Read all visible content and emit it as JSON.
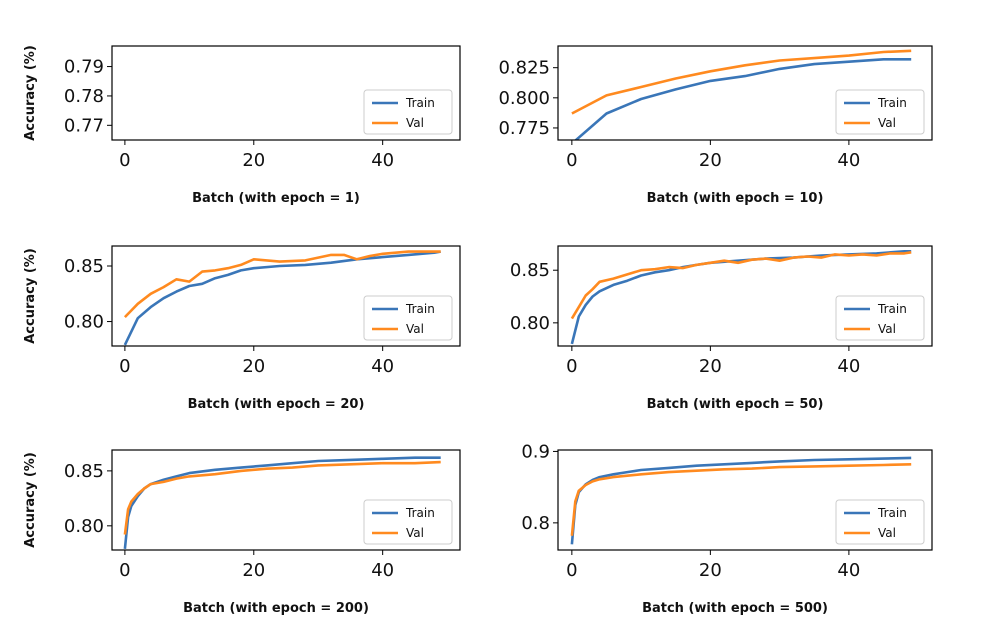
{
  "colors": {
    "train": "#3a76b8",
    "val": "#ff8a1f"
  },
  "chart_data": [
    {
      "type": "line",
      "xlabel": "Batch (with epoch = 1)",
      "ylabel": "Accuracy (%)",
      "xlim": [
        -2,
        52
      ],
      "ylim": [
        0.765,
        0.797
      ],
      "xticks": [
        0,
        20,
        40
      ],
      "yticks": [
        0.77,
        0.78,
        0.79
      ],
      "ytick_labels": [
        "0.77",
        "0.78",
        "0.79"
      ],
      "legend": "lower right",
      "series": [
        {
          "name": "Train",
          "x": [],
          "y": []
        },
        {
          "name": "Val",
          "x": [],
          "y": []
        }
      ]
    },
    {
      "type": "line",
      "xlabel": "Batch (with epoch = 10)",
      "ylabel": "Accuracy (%)",
      "xlim": [
        -2,
        52
      ],
      "ylim": [
        0.765,
        0.843
      ],
      "xticks": [
        0,
        20,
        40
      ],
      "yticks": [
        0.775,
        0.8,
        0.825
      ],
      "ytick_labels": [
        "0.775",
        "0.800",
        "0.825"
      ],
      "legend": "lower right",
      "series": [
        {
          "name": "Train",
          "x": [
            0,
            5,
            10,
            15,
            20,
            25,
            30,
            35,
            40,
            45,
            49
          ],
          "y": [
            0.762,
            0.787,
            0.799,
            0.807,
            0.814,
            0.818,
            0.824,
            0.828,
            0.83,
            0.832,
            0.832
          ]
        },
        {
          "name": "Val",
          "x": [
            0,
            5,
            10,
            15,
            20,
            25,
            30,
            35,
            40,
            45,
            49
          ],
          "y": [
            0.787,
            0.802,
            0.809,
            0.816,
            0.822,
            0.827,
            0.831,
            0.833,
            0.835,
            0.838,
            0.839
          ]
        }
      ]
    },
    {
      "type": "line",
      "xlabel": "Batch (with epoch = 20)",
      "ylabel": "Accuracy (%)",
      "xlim": [
        -2,
        52
      ],
      "ylim": [
        0.778,
        0.868
      ],
      "xticks": [
        0,
        20,
        40
      ],
      "yticks": [
        0.8,
        0.85
      ],
      "ytick_labels": [
        "0.80",
        "0.85"
      ],
      "legend": "lower right",
      "series": [
        {
          "name": "Train",
          "x": [
            0,
            2,
            4,
            6,
            8,
            10,
            12,
            14,
            16,
            18,
            20,
            24,
            28,
            32,
            36,
            40,
            44,
            48,
            49
          ],
          "y": [
            0.779,
            0.803,
            0.813,
            0.821,
            0.827,
            0.832,
            0.834,
            0.839,
            0.842,
            0.846,
            0.848,
            0.85,
            0.851,
            0.853,
            0.856,
            0.858,
            0.86,
            0.862,
            0.863
          ]
        },
        {
          "name": "Val",
          "x": [
            0,
            2,
            4,
            6,
            8,
            10,
            12,
            14,
            16,
            18,
            20,
            24,
            28,
            32,
            34,
            36,
            38,
            40,
            44,
            48,
            49
          ],
          "y": [
            0.804,
            0.816,
            0.825,
            0.831,
            0.838,
            0.836,
            0.845,
            0.846,
            0.848,
            0.851,
            0.856,
            0.854,
            0.855,
            0.86,
            0.86,
            0.856,
            0.859,
            0.861,
            0.863,
            0.863,
            0.863
          ]
        }
      ]
    },
    {
      "type": "line",
      "xlabel": "Batch (with epoch = 50)",
      "ylabel": "Accuracy (%)",
      "xlim": [
        -2,
        52
      ],
      "ylim": [
        0.778,
        0.873
      ],
      "xticks": [
        0,
        20,
        40
      ],
      "yticks": [
        0.8,
        0.85
      ],
      "ytick_labels": [
        "0.80",
        "0.85"
      ],
      "legend": "lower right",
      "series": [
        {
          "name": "Train",
          "x": [
            0,
            1,
            2,
            3,
            4,
            6,
            8,
            10,
            12,
            14,
            16,
            18,
            20,
            24,
            28,
            32,
            36,
            40,
            44,
            48,
            49
          ],
          "y": [
            0.78,
            0.806,
            0.817,
            0.825,
            0.83,
            0.836,
            0.84,
            0.845,
            0.848,
            0.85,
            0.853,
            0.855,
            0.857,
            0.859,
            0.861,
            0.862,
            0.864,
            0.865,
            0.866,
            0.868,
            0.868
          ]
        },
        {
          "name": "Val",
          "x": [
            0,
            1,
            2,
            3,
            4,
            6,
            8,
            10,
            12,
            14,
            16,
            18,
            20,
            22,
            24,
            26,
            28,
            30,
            32,
            34,
            36,
            38,
            40,
            42,
            44,
            46,
            48,
            49
          ],
          "y": [
            0.804,
            0.815,
            0.826,
            0.832,
            0.839,
            0.842,
            0.846,
            0.85,
            0.851,
            0.853,
            0.852,
            0.855,
            0.857,
            0.859,
            0.857,
            0.86,
            0.861,
            0.859,
            0.862,
            0.863,
            0.862,
            0.865,
            0.864,
            0.865,
            0.864,
            0.866,
            0.866,
            0.867
          ]
        }
      ]
    },
    {
      "type": "line",
      "xlabel": "Batch (with epoch = 200)",
      "ylabel": "Accuracy (%)",
      "xlim": [
        -2,
        52
      ],
      "ylim": [
        0.778,
        0.869
      ],
      "xticks": [
        0,
        20,
        40
      ],
      "yticks": [
        0.8,
        0.85
      ],
      "ytick_labels": [
        "0.80",
        "0.85"
      ],
      "legend": "lower right",
      "series": [
        {
          "name": "Train",
          "x": [
            0,
            0.5,
            1,
            2,
            3,
            4,
            6,
            8,
            10,
            14,
            18,
            22,
            26,
            30,
            35,
            40,
            45,
            49
          ],
          "y": [
            0.779,
            0.808,
            0.818,
            0.827,
            0.834,
            0.838,
            0.842,
            0.845,
            0.848,
            0.851,
            0.853,
            0.855,
            0.857,
            0.859,
            0.86,
            0.861,
            0.862,
            0.862
          ]
        },
        {
          "name": "Val",
          "x": [
            0,
            0.5,
            1,
            2,
            3,
            4,
            6,
            8,
            10,
            14,
            18,
            22,
            26,
            30,
            35,
            40,
            45,
            49
          ],
          "y": [
            0.792,
            0.815,
            0.822,
            0.829,
            0.834,
            0.838,
            0.84,
            0.843,
            0.845,
            0.847,
            0.85,
            0.852,
            0.853,
            0.855,
            0.856,
            0.857,
            0.857,
            0.858
          ]
        }
      ]
    },
    {
      "type": "line",
      "xlabel": "Batch (with epoch = 500)",
      "ylabel": "Accuracy (%)",
      "xlim": [
        -2,
        52
      ],
      "ylim": [
        0.762,
        0.902
      ],
      "xticks": [
        0,
        20,
        40
      ],
      "yticks": [
        0.8,
        0.9
      ],
      "ytick_labels": [
        "0.8",
        "0.9"
      ],
      "legend": "lower right",
      "series": [
        {
          "name": "Train",
          "x": [
            0,
            0.5,
            1,
            2,
            3,
            4,
            6,
            8,
            10,
            14,
            18,
            22,
            26,
            30,
            35,
            40,
            45,
            49
          ],
          "y": [
            0.77,
            0.825,
            0.843,
            0.854,
            0.86,
            0.864,
            0.868,
            0.871,
            0.874,
            0.877,
            0.88,
            0.882,
            0.884,
            0.886,
            0.888,
            0.889,
            0.89,
            0.891
          ]
        },
        {
          "name": "Val",
          "x": [
            0,
            0.5,
            1,
            2,
            3,
            4,
            6,
            8,
            10,
            14,
            18,
            22,
            26,
            30,
            35,
            40,
            45,
            49
          ],
          "y": [
            0.782,
            0.83,
            0.845,
            0.853,
            0.858,
            0.861,
            0.864,
            0.866,
            0.868,
            0.871,
            0.873,
            0.875,
            0.876,
            0.878,
            0.879,
            0.88,
            0.881,
            0.882
          ]
        }
      ]
    }
  ]
}
